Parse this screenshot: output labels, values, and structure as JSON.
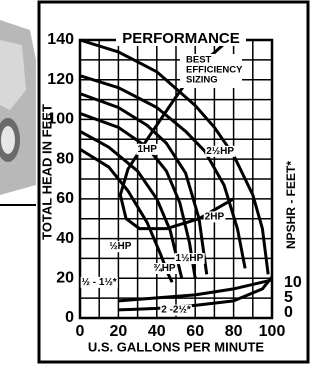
{
  "chart_data": {
    "type": "line",
    "title": "PERFORMANCE",
    "annotation": [
      "BEST",
      "EFFICIENCY",
      "SIZING"
    ],
    "x_label": "U.S. GALLONS PER MINUTE",
    "y_label": "TOTAL HEAD IN FEET",
    "y2_label": "NPSHR - FEET*",
    "xlim": [
      0,
      100
    ],
    "ylim": [
      0,
      140
    ],
    "y2lim": [
      -1.7,
      91
    ],
    "xticks": [
      0,
      20,
      40,
      60,
      80,
      100
    ],
    "yticks": [
      0,
      20,
      40,
      60,
      80,
      100,
      120,
      140
    ],
    "y2ticks": [
      0,
      5,
      10
    ],
    "grid": true,
    "series": [
      {
        "name": "2½HP",
        "color": "#000000",
        "x": [
          0,
          20,
          40,
          60,
          70,
          80,
          90,
          95,
          98
        ],
        "values": [
          140,
          134,
          124,
          107,
          96,
          82,
          62,
          45,
          22
        ]
      },
      {
        "name": "2HP",
        "color": "#000000",
        "x": [
          0,
          20,
          40,
          55,
          65,
          75,
          82,
          86
        ],
        "values": [
          122,
          116,
          106,
          94,
          84,
          67,
          45,
          25
        ]
      },
      {
        "name": "1½HP",
        "color": "#000000",
        "x": [
          0,
          20,
          35,
          45,
          55,
          62,
          66
        ],
        "values": [
          113,
          106,
          97,
          88,
          73,
          50,
          22
        ]
      },
      {
        "name": "1HP",
        "color": "#000000",
        "x": [
          0,
          20,
          35,
          45,
          52,
          57,
          60
        ],
        "values": [
          103,
          96,
          86,
          74,
          58,
          38,
          20
        ]
      },
      {
        "name": "¾HP",
        "color": "#000000",
        "x": [
          0,
          15,
          30,
          40,
          47,
          51,
          53
        ],
        "values": [
          94,
          86,
          74,
          60,
          44,
          28,
          20
        ]
      },
      {
        "name": "½HP",
        "color": "#000000",
        "x": [
          0,
          15,
          25,
          35,
          42,
          46,
          48
        ],
        "values": [
          85,
          76,
          64,
          48,
          32,
          22,
          18
        ]
      },
      {
        "color": "#000000",
        "x": [
          75,
          60,
          49,
          35,
          25,
          21,
          24,
          31,
          45,
          62,
          80
        ],
        "values": [
          138,
          125,
          110,
          90,
          75,
          62,
          50,
          45,
          45,
          50,
          60
        ]
      },
      {
        "name": "½ - 1½*",
        "color": "#000000",
        "axis": "y2",
        "x": [
          20,
          40,
          60,
          80,
          100
        ],
        "values": [
          4,
          5,
          6,
          8,
          11
        ]
      },
      {
        "name": "2 -2½*",
        "color": "#000000",
        "axis": "y2",
        "x": [
          20,
          40,
          60,
          80,
          95,
          100
        ],
        "values": [
          1,
          1.5,
          2.5,
          4,
          8,
          12
        ]
      }
    ]
  }
}
